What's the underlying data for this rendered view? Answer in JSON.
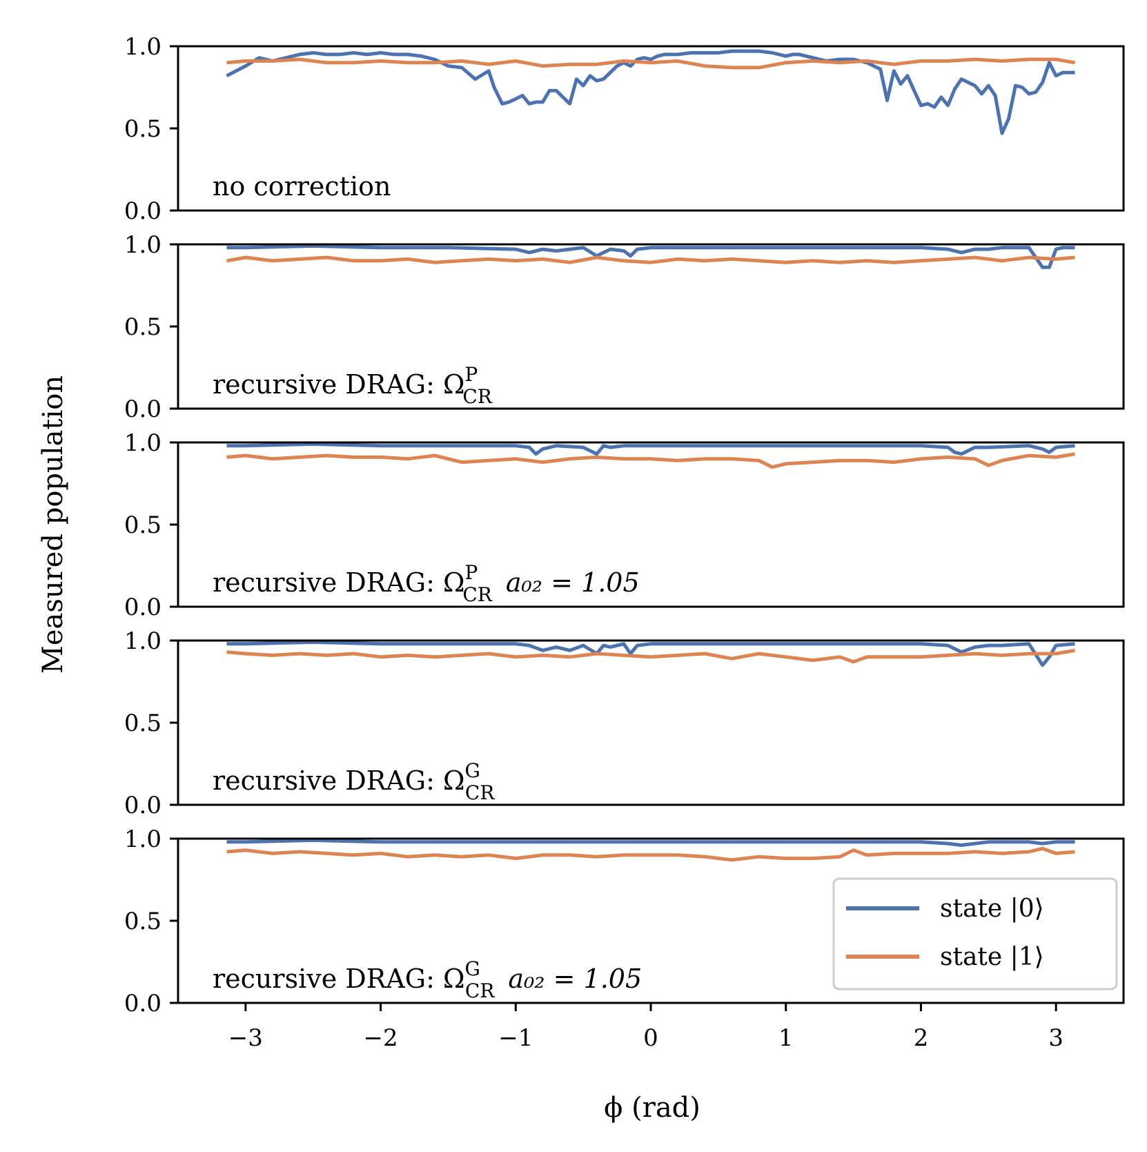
{
  "chart_data": {
    "type": "line",
    "ylabel": "Measured population",
    "xlabel": "ϕ (rad)",
    "xlim": [
      -3.5,
      3.5
    ],
    "ylim": [
      0,
      1.0
    ],
    "xticks": [
      -3,
      -2,
      -1,
      0,
      1,
      2,
      3
    ],
    "xtick_labels": [
      "−3",
      "−2",
      "−1",
      "0",
      "1",
      "2",
      "3"
    ],
    "yticks": [
      0,
      0.5,
      1.0
    ],
    "ytick_labels": [
      "0.0",
      "0.5",
      "1.0"
    ],
    "colors": {
      "state0": "#4c72b0",
      "state1": "#dd8452"
    },
    "legend": {
      "position": "lower-right",
      "entries": [
        {
          "key": "state0",
          "label": "state |0⟩"
        },
        {
          "key": "state1",
          "label": "state |1⟩"
        }
      ]
    },
    "panels": [
      {
        "label_text": "no correction",
        "label_sup": "",
        "label_sub": "",
        "label_extra": "",
        "series": [
          {
            "name": "state |0⟩",
            "key": "state0",
            "x": [
              -3.14,
              -3.0,
              -2.9,
              -2.8,
              -2.7,
              -2.6,
              -2.5,
              -2.4,
              -2.3,
              -2.2,
              -2.1,
              -2.0,
              -1.9,
              -1.8,
              -1.7,
              -1.6,
              -1.5,
              -1.4,
              -1.3,
              -1.2,
              -1.16,
              -1.1,
              -1.05,
              -1.0,
              -0.95,
              -0.9,
              -0.85,
              -0.8,
              -0.75,
              -0.7,
              -0.65,
              -0.6,
              -0.55,
              -0.5,
              -0.45,
              -0.4,
              -0.35,
              -0.3,
              -0.25,
              -0.2,
              -0.15,
              -0.1,
              -0.05,
              0.0,
              0.05,
              0.1,
              0.2,
              0.3,
              0.4,
              0.5,
              0.6,
              0.7,
              0.8,
              0.9,
              1.0,
              1.05,
              1.1,
              1.2,
              1.3,
              1.4,
              1.5,
              1.6,
              1.7,
              1.75,
              1.8,
              1.85,
              1.9,
              1.95,
              2.0,
              2.05,
              2.1,
              2.15,
              2.2,
              2.25,
              2.3,
              2.35,
              2.4,
              2.45,
              2.5,
              2.55,
              2.6,
              2.65,
              2.7,
              2.75,
              2.8,
              2.85,
              2.9,
              2.95,
              3.0,
              3.05,
              3.1,
              3.14
            ],
            "y": [
              0.82,
              0.88,
              0.93,
              0.91,
              0.93,
              0.95,
              0.96,
              0.95,
              0.95,
              0.96,
              0.95,
              0.96,
              0.95,
              0.95,
              0.94,
              0.92,
              0.88,
              0.87,
              0.8,
              0.85,
              0.75,
              0.65,
              0.66,
              0.68,
              0.7,
              0.65,
              0.66,
              0.66,
              0.73,
              0.73,
              0.69,
              0.65,
              0.8,
              0.76,
              0.82,
              0.79,
              0.8,
              0.84,
              0.88,
              0.9,
              0.88,
              0.92,
              0.93,
              0.92,
              0.94,
              0.95,
              0.95,
              0.96,
              0.96,
              0.96,
              0.97,
              0.97,
              0.97,
              0.96,
              0.94,
              0.95,
              0.95,
              0.93,
              0.91,
              0.92,
              0.92,
              0.9,
              0.86,
              0.67,
              0.85,
              0.77,
              0.82,
              0.73,
              0.64,
              0.65,
              0.63,
              0.69,
              0.64,
              0.74,
              0.8,
              0.78,
              0.76,
              0.71,
              0.76,
              0.7,
              0.47,
              0.56,
              0.76,
              0.75,
              0.71,
              0.72,
              0.78,
              0.9,
              0.82,
              0.84,
              0.84,
              0.84
            ]
          },
          {
            "name": "state |1⟩",
            "key": "state1",
            "x": [
              -3.14,
              -3.0,
              -2.8,
              -2.6,
              -2.4,
              -2.2,
              -2.0,
              -1.8,
              -1.6,
              -1.4,
              -1.2,
              -1.0,
              -0.8,
              -0.6,
              -0.4,
              -0.2,
              0.0,
              0.2,
              0.4,
              0.6,
              0.8,
              1.0,
              1.2,
              1.4,
              1.6,
              1.8,
              2.0,
              2.2,
              2.4,
              2.6,
              2.8,
              3.0,
              3.14
            ],
            "y": [
              0.9,
              0.91,
              0.91,
              0.92,
              0.9,
              0.9,
              0.91,
              0.9,
              0.9,
              0.91,
              0.89,
              0.91,
              0.88,
              0.89,
              0.89,
              0.91,
              0.9,
              0.91,
              0.88,
              0.87,
              0.87,
              0.9,
              0.91,
              0.9,
              0.91,
              0.89,
              0.91,
              0.91,
              0.92,
              0.91,
              0.92,
              0.92,
              0.9
            ]
          }
        ]
      },
      {
        "label_text": "recursive DRAG: Ω",
        "label_sup": "P",
        "label_sub": "CR",
        "label_extra": "",
        "series": [
          {
            "name": "state |0⟩",
            "key": "state0",
            "x": [
              -3.14,
              -3.0,
              -2.5,
              -2.0,
              -1.5,
              -1.0,
              -0.9,
              -0.8,
              -0.7,
              -0.6,
              -0.5,
              -0.4,
              -0.3,
              -0.2,
              -0.15,
              -0.1,
              0.0,
              0.5,
              1.0,
              1.5,
              2.0,
              2.2,
              2.3,
              2.4,
              2.5,
              2.6,
              2.8,
              2.9,
              2.95,
              3.0,
              3.05,
              3.14
            ],
            "y": [
              0.98,
              0.98,
              0.99,
              0.98,
              0.98,
              0.97,
              0.95,
              0.97,
              0.96,
              0.97,
              0.98,
              0.93,
              0.97,
              0.96,
              0.93,
              0.97,
              0.98,
              0.98,
              0.98,
              0.98,
              0.98,
              0.97,
              0.95,
              0.97,
              0.97,
              0.98,
              0.98,
              0.86,
              0.86,
              0.97,
              0.98,
              0.98
            ]
          },
          {
            "name": "state |1⟩",
            "key": "state1",
            "x": [
              -3.14,
              -3.0,
              -2.8,
              -2.6,
              -2.4,
              -2.2,
              -2.0,
              -1.8,
              -1.6,
              -1.4,
              -1.2,
              -1.0,
              -0.8,
              -0.6,
              -0.4,
              -0.2,
              0.0,
              0.2,
              0.4,
              0.6,
              0.8,
              1.0,
              1.2,
              1.4,
              1.6,
              1.8,
              2.0,
              2.2,
              2.4,
              2.6,
              2.8,
              3.0,
              3.14
            ],
            "y": [
              0.9,
              0.92,
              0.9,
              0.91,
              0.92,
              0.9,
              0.9,
              0.91,
              0.89,
              0.9,
              0.91,
              0.9,
              0.91,
              0.89,
              0.92,
              0.9,
              0.89,
              0.91,
              0.9,
              0.91,
              0.9,
              0.89,
              0.9,
              0.89,
              0.9,
              0.89,
              0.9,
              0.91,
              0.92,
              0.9,
              0.92,
              0.91,
              0.92
            ]
          }
        ]
      },
      {
        "label_text": "recursive DRAG: Ω",
        "label_sup": "P",
        "label_sub": "CR",
        "label_extra": "a₀₂ = 1.05",
        "series": [
          {
            "name": "state |0⟩",
            "key": "state0",
            "x": [
              -3.14,
              -3.0,
              -2.5,
              -2.0,
              -1.5,
              -1.0,
              -0.9,
              -0.85,
              -0.8,
              -0.7,
              -0.5,
              -0.4,
              -0.35,
              -0.3,
              -0.2,
              0.0,
              0.5,
              1.0,
              1.5,
              2.0,
              2.2,
              2.25,
              2.3,
              2.4,
              2.5,
              2.8,
              2.9,
              2.95,
              3.0,
              3.14
            ],
            "y": [
              0.98,
              0.98,
              0.99,
              0.98,
              0.98,
              0.98,
              0.97,
              0.93,
              0.96,
              0.98,
              0.97,
              0.93,
              0.98,
              0.97,
              0.98,
              0.98,
              0.98,
              0.98,
              0.98,
              0.98,
              0.97,
              0.94,
              0.93,
              0.97,
              0.97,
              0.98,
              0.96,
              0.94,
              0.97,
              0.98
            ]
          },
          {
            "name": "state |1⟩",
            "key": "state1",
            "x": [
              -3.14,
              -3.0,
              -2.8,
              -2.6,
              -2.4,
              -2.2,
              -2.0,
              -1.8,
              -1.6,
              -1.4,
              -1.2,
              -1.0,
              -0.8,
              -0.6,
              -0.4,
              -0.2,
              0.0,
              0.2,
              0.4,
              0.6,
              0.8,
              0.9,
              1.0,
              1.2,
              1.4,
              1.6,
              1.8,
              2.0,
              2.2,
              2.4,
              2.5,
              2.6,
              2.8,
              3.0,
              3.14
            ],
            "y": [
              0.91,
              0.92,
              0.9,
              0.91,
              0.92,
              0.91,
              0.91,
              0.9,
              0.92,
              0.88,
              0.89,
              0.9,
              0.88,
              0.9,
              0.91,
              0.9,
              0.9,
              0.89,
              0.9,
              0.9,
              0.89,
              0.85,
              0.87,
              0.88,
              0.89,
              0.89,
              0.88,
              0.9,
              0.91,
              0.9,
              0.86,
              0.89,
              0.92,
              0.91,
              0.93
            ]
          }
        ]
      },
      {
        "label_text": "recursive DRAG: Ω",
        "label_sup": "G",
        "label_sub": "CR",
        "label_extra": "",
        "series": [
          {
            "name": "state |0⟩",
            "key": "state0",
            "x": [
              -3.14,
              -3.0,
              -2.5,
              -2.0,
              -1.5,
              -1.0,
              -0.9,
              -0.8,
              -0.7,
              -0.6,
              -0.5,
              -0.4,
              -0.35,
              -0.3,
              -0.2,
              -0.15,
              -0.1,
              0.0,
              0.5,
              1.0,
              1.5,
              2.0,
              2.2,
              2.3,
              2.4,
              2.5,
              2.6,
              2.8,
              2.9,
              2.95,
              3.0,
              3.14
            ],
            "y": [
              0.98,
              0.98,
              0.99,
              0.98,
              0.98,
              0.98,
              0.97,
              0.94,
              0.96,
              0.94,
              0.97,
              0.92,
              0.97,
              0.96,
              0.98,
              0.92,
              0.97,
              0.98,
              0.98,
              0.98,
              0.98,
              0.98,
              0.97,
              0.93,
              0.96,
              0.97,
              0.97,
              0.98,
              0.85,
              0.9,
              0.97,
              0.98
            ]
          },
          {
            "name": "state |1⟩",
            "key": "state1",
            "x": [
              -3.14,
              -3.0,
              -2.8,
              -2.6,
              -2.4,
              -2.2,
              -2.0,
              -1.8,
              -1.6,
              -1.4,
              -1.2,
              -1.0,
              -0.8,
              -0.6,
              -0.4,
              -0.2,
              0.0,
              0.2,
              0.4,
              0.6,
              0.8,
              1.0,
              1.2,
              1.4,
              1.5,
              1.6,
              1.8,
              2.0,
              2.2,
              2.4,
              2.6,
              2.8,
              3.0,
              3.14
            ],
            "y": [
              0.93,
              0.92,
              0.91,
              0.92,
              0.91,
              0.92,
              0.9,
              0.91,
              0.9,
              0.91,
              0.92,
              0.9,
              0.91,
              0.9,
              0.92,
              0.91,
              0.9,
              0.91,
              0.92,
              0.89,
              0.92,
              0.9,
              0.88,
              0.9,
              0.87,
              0.9,
              0.9,
              0.9,
              0.91,
              0.92,
              0.91,
              0.92,
              0.92,
              0.94
            ]
          }
        ]
      },
      {
        "label_text": "recursive DRAG: Ω",
        "label_sup": "G",
        "label_sub": "CR",
        "label_extra": "a₀₂ = 1.05",
        "series": [
          {
            "name": "state |0⟩",
            "key": "state0",
            "x": [
              -3.14,
              -3.0,
              -2.5,
              -2.0,
              -1.5,
              -1.0,
              -0.5,
              0.0,
              0.5,
              1.0,
              1.5,
              2.0,
              2.2,
              2.3,
              2.4,
              2.5,
              2.8,
              2.9,
              3.0,
              3.14
            ],
            "y": [
              0.98,
              0.98,
              0.99,
              0.98,
              0.98,
              0.98,
              0.98,
              0.98,
              0.98,
              0.98,
              0.98,
              0.98,
              0.97,
              0.96,
              0.97,
              0.98,
              0.98,
              0.97,
              0.98,
              0.98
            ]
          },
          {
            "name": "state |1⟩",
            "key": "state1",
            "x": [
              -3.14,
              -3.0,
              -2.8,
              -2.6,
              -2.4,
              -2.2,
              -2.0,
              -1.8,
              -1.6,
              -1.4,
              -1.2,
              -1.0,
              -0.8,
              -0.6,
              -0.4,
              -0.2,
              0.0,
              0.2,
              0.4,
              0.6,
              0.8,
              1.0,
              1.2,
              1.4,
              1.5,
              1.6,
              1.8,
              2.0,
              2.2,
              2.4,
              2.6,
              2.8,
              2.9,
              3.0,
              3.14
            ],
            "y": [
              0.92,
              0.93,
              0.91,
              0.92,
              0.91,
              0.9,
              0.91,
              0.89,
              0.9,
              0.89,
              0.9,
              0.88,
              0.9,
              0.9,
              0.89,
              0.9,
              0.9,
              0.9,
              0.89,
              0.87,
              0.89,
              0.88,
              0.88,
              0.89,
              0.93,
              0.9,
              0.91,
              0.91,
              0.91,
              0.92,
              0.91,
              0.92,
              0.94,
              0.91,
              0.92
            ]
          }
        ]
      }
    ]
  }
}
